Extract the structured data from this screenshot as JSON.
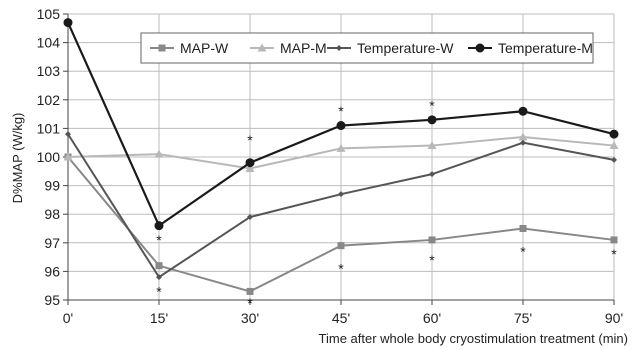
{
  "chart_data": {
    "type": "line",
    "title": "",
    "xlabel": "Time after whole body cryostimulation treatment (min)",
    "ylabel": "D%MAP (W/kg)",
    "categories": [
      "0'",
      "15'",
      "30'",
      "45'",
      "60'",
      "75'",
      "90'"
    ],
    "ylim": [
      95,
      105
    ],
    "yticks": [
      "95",
      "96",
      "97",
      "98",
      "99",
      "100",
      "101",
      "102",
      "103",
      "104",
      "105"
    ],
    "grid": true,
    "legend_position": "top",
    "series": [
      {
        "name": "MAP-W",
        "marker": "square",
        "color": "#888888",
        "values": [
          100.0,
          96.2,
          95.3,
          96.9,
          97.1,
          97.5,
          97.1
        ]
      },
      {
        "name": "MAP-M",
        "marker": "triangle",
        "color": "#b8b8b8",
        "values": [
          100.0,
          100.1,
          99.6,
          100.3,
          100.4,
          100.7,
          100.4
        ]
      },
      {
        "name": "Temperature-W",
        "marker": "diamond",
        "color": "#555555",
        "values": [
          100.8,
          95.8,
          97.9,
          98.7,
          99.4,
          100.5,
          99.9
        ]
      },
      {
        "name": "Temperature-M",
        "marker": "circle",
        "color": "#1a1a1a",
        "values": [
          104.7,
          97.6,
          99.8,
          101.1,
          101.3,
          101.6,
          100.8
        ]
      }
    ],
    "annotations": [
      {
        "text": "*",
        "x": "15'",
        "y": 97.1
      },
      {
        "text": "*",
        "x": "15'",
        "y": 95.3
      },
      {
        "text": "*",
        "x": "30'",
        "y": 100.6
      },
      {
        "text": "*",
        "x": "30'",
        "y": 94.9
      },
      {
        "text": "*",
        "x": "45'",
        "y": 101.6
      },
      {
        "text": "*",
        "x": "45'",
        "y": 96.1
      },
      {
        "text": "*",
        "x": "60'",
        "y": 101.8
      },
      {
        "text": "*",
        "x": "60'",
        "y": 96.4
      },
      {
        "text": "*",
        "x": "75'",
        "y": 96.7
      },
      {
        "text": "*",
        "x": "90'",
        "y": 96.6
      }
    ]
  }
}
